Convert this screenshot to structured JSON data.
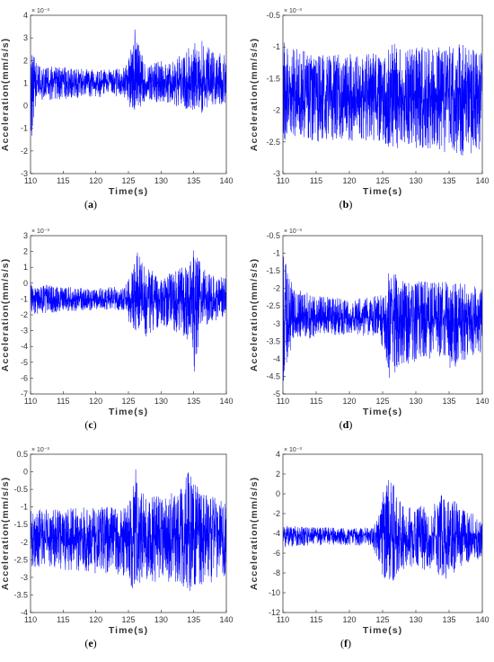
{
  "colors": {
    "signal": "#0000ff",
    "axes": "#262626"
  },
  "chart_data": [
    {
      "type": "line",
      "caption": "(a)",
      "xlabel": "Time(s)",
      "ylabel": "Acceleration(mm/s/s)",
      "y_exponent": "× 10⁻³",
      "xlim": [
        110,
        140
      ],
      "ylim": [
        -3,
        4
      ],
      "xticks": [
        "110",
        "115",
        "120",
        "125",
        "130",
        "135",
        "140"
      ],
      "yticks": [
        "4",
        "3",
        "2",
        "1",
        "0",
        "-1",
        "-2",
        "-3"
      ],
      "series_mean": 1.0,
      "envelope": {
        "t": [
          110,
          110.5,
          111,
          115,
          120,
          124.5,
          125,
          126,
          127,
          128,
          130,
          132,
          134,
          135,
          136,
          137,
          138,
          140
        ],
        "upper": [
          3.4,
          2.2,
          1.8,
          1.7,
          1.6,
          1.7,
          2.1,
          3.4,
          2.3,
          1.9,
          2.0,
          2.1,
          2.5,
          2.8,
          3.0,
          2.7,
          2.6,
          2.2
        ],
        "lower": [
          -2.2,
          -0.5,
          0.2,
          0.3,
          0.4,
          0.3,
          0.0,
          -0.3,
          0.0,
          0.2,
          0.1,
          0.0,
          -0.2,
          -0.3,
          -0.4,
          -0.2,
          0.0,
          0.1
        ]
      }
    },
    {
      "type": "line",
      "caption": "(b)",
      "xlabel": "Time(s)",
      "ylabel": "Acceleration(mm/s/s)",
      "y_exponent": "× 10⁻³",
      "xlim": [
        110,
        140
      ],
      "ylim": [
        -3,
        -0.5
      ],
      "xticks": [
        "110",
        "115",
        "120",
        "125",
        "130",
        "135",
        "140"
      ],
      "yticks": [
        "-0.5",
        "-1",
        "-1.5",
        "-2",
        "-2.5",
        "-3"
      ],
      "series_mean": -1.8,
      "envelope": {
        "t": [
          110,
          111,
          115,
          120,
          125,
          126,
          130,
          135,
          136,
          140
        ],
        "upper": [
          -0.8,
          -1.0,
          -1.1,
          -1.1,
          -1.1,
          -0.9,
          -1.0,
          -1.0,
          -0.9,
          -1.1
        ],
        "lower": [
          -2.5,
          -2.4,
          -2.5,
          -2.5,
          -2.5,
          -2.6,
          -2.6,
          -2.7,
          -2.8,
          -2.6
        ]
      }
    },
    {
      "type": "line",
      "caption": "(c)",
      "xlabel": "Time(s)",
      "ylabel": "Acceleration(mm/s/s)",
      "y_exponent": "× 10⁻³",
      "xlim": [
        110,
        140
      ],
      "ylim": [
        -7,
        3
      ],
      "xticks": [
        "110",
        "115",
        "120",
        "125",
        "130",
        "135",
        "140"
      ],
      "yticks": [
        "3",
        "2",
        "1",
        "0",
        "-1",
        "-2",
        "-3",
        "-4",
        "-5",
        "-6",
        "-7"
      ],
      "series_mean": -1.0,
      "envelope": {
        "t": [
          110,
          115,
          120,
          124.5,
          125.5,
          126.5,
          127.5,
          130,
          133,
          134.5,
          135.2,
          136,
          138,
          140
        ],
        "upper": [
          0.0,
          -0.2,
          -0.3,
          -0.2,
          1.2,
          2.1,
          1.2,
          0.3,
          1.0,
          1.5,
          2.8,
          1.2,
          0.5,
          0.3
        ],
        "lower": [
          -2.0,
          -1.8,
          -1.7,
          -1.8,
          -3.0,
          -3.8,
          -3.5,
          -2.7,
          -3.2,
          -3.8,
          -6.1,
          -3.5,
          -2.4,
          -2.2
        ]
      }
    },
    {
      "type": "line",
      "caption": "(d)",
      "xlabel": "Time(s)",
      "ylabel": "Acceleration(mm/s/s)",
      "y_exponent": "× 10⁻³",
      "xlim": [
        110,
        140
      ],
      "ylim": [
        -5,
        -0.5
      ],
      "xticks": [
        "110",
        "115",
        "120",
        "125",
        "130",
        "135",
        "140"
      ],
      "yticks": [
        "-0.5",
        "-1",
        "-1.5",
        "-2",
        "-2.5",
        "-3",
        "-3.5",
        "-4",
        "-4.5",
        "-5"
      ],
      "series_mean": -2.85,
      "envelope": {
        "t": [
          110,
          110.5,
          111.5,
          115,
          120,
          124.5,
          125.5,
          126,
          128,
          130,
          132,
          135,
          138,
          140
        ],
        "upper": [
          -0.6,
          -1.2,
          -2.0,
          -2.2,
          -2.3,
          -2.2,
          -1.8,
          -1.5,
          -1.7,
          -1.8,
          -1.8,
          -1.8,
          -1.9,
          -2.0
        ],
        "lower": [
          -4.8,
          -4.2,
          -3.5,
          -3.4,
          -3.3,
          -3.4,
          -4.0,
          -4.6,
          -4.2,
          -4.1,
          -4.0,
          -4.3,
          -4.0,
          -3.8
        ]
      }
    },
    {
      "type": "line",
      "caption": "(e)",
      "xlabel": "Time(s)",
      "ylabel": "Acceleration(mm/s/s)",
      "y_exponent": "× 10⁻³",
      "xlim": [
        110,
        140
      ],
      "ylim": [
        -4,
        0.5
      ],
      "xticks": [
        "110",
        "115",
        "120",
        "125",
        "130",
        "135",
        "140"
      ],
      "yticks": [
        "0.5",
        "0",
        "-0.5",
        "-1",
        "-1.5",
        "-2",
        "-2.5",
        "-3",
        "-3.5",
        "-4"
      ],
      "series_mean": -1.85,
      "envelope": {
        "t": [
          110,
          115,
          120,
          124.5,
          125.5,
          126,
          127,
          130,
          133,
          134,
          135,
          137,
          140
        ],
        "upper": [
          -1.1,
          -1.0,
          -1.0,
          -1.0,
          -0.6,
          0.3,
          -0.5,
          -0.7,
          -0.5,
          0.1,
          -0.3,
          -0.6,
          -0.8
        ],
        "lower": [
          -2.7,
          -2.8,
          -2.9,
          -3.0,
          -3.3,
          -3.4,
          -3.2,
          -3.1,
          -3.2,
          -3.5,
          -3.4,
          -3.2,
          -3.0
        ]
      }
    },
    {
      "type": "line",
      "caption": "(f)",
      "xlabel": "Time(s)",
      "ylabel": "Acceleration(mm/s/s)",
      "y_exponent": "× 10⁻³",
      "xlim": [
        110,
        140
      ],
      "ylim": [
        -12,
        4
      ],
      "xticks": [
        "110",
        "115",
        "120",
        "125",
        "130",
        "135",
        "140"
      ],
      "yticks": [
        "4",
        "2",
        "0",
        "-2",
        "-4",
        "-6",
        "-8",
        "-10",
        "-12"
      ],
      "series_mean": -4.2,
      "envelope": {
        "t": [
          110,
          115,
          120,
          123.5,
          124.5,
          125.5,
          126,
          127,
          128,
          130,
          133,
          134,
          136,
          138,
          140
        ],
        "upper": [
          -3.2,
          -3.4,
          -3.4,
          -3.4,
          -1.5,
          1.8,
          2.3,
          0.5,
          -1.0,
          -1.2,
          -1.0,
          0.2,
          -0.8,
          -1.8,
          -2.5
        ],
        "lower": [
          -5.4,
          -5.2,
          -5.2,
          -5.3,
          -7.5,
          -9.5,
          -10.2,
          -8.5,
          -7.8,
          -7.5,
          -8.0,
          -9.0,
          -8.0,
          -7.0,
          -6.5
        ]
      }
    }
  ]
}
